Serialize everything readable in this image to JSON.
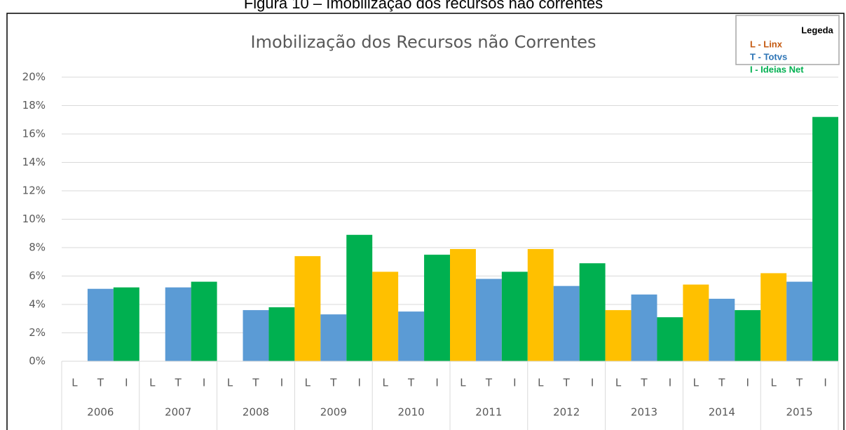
{
  "chart_data": {
    "type": "bar",
    "caption": "Figura 10 – Imobilização dos recursos não correntes",
    "title": "Imobilização dos Recursos não Correntes",
    "categories": [
      "2006",
      "2007",
      "2008",
      "2009",
      "2010",
      "2011",
      "2012",
      "2013",
      "2014",
      "2015"
    ],
    "sub_labels": [
      "L",
      "T",
      "I"
    ],
    "legend_title": "Legeda",
    "legend_position": "top-right",
    "grid": true,
    "series": [
      {
        "name": "L - Linx",
        "color": "#ffc000",
        "legend_color": "#c55a11",
        "values": [
          null,
          null,
          null,
          7.4,
          6.3,
          7.9,
          7.9,
          3.6,
          5.4,
          6.2
        ]
      },
      {
        "name": "T - Totvs",
        "color": "#5b9bd5",
        "legend_color": "#2e75b6",
        "values": [
          5.1,
          5.2,
          3.6,
          3.3,
          3.5,
          5.8,
          5.3,
          4.7,
          4.4,
          5.6
        ]
      },
      {
        "name": "I - Ideias Net",
        "color": "#00b050",
        "legend_color": "#00b050",
        "values": [
          5.2,
          5.6,
          3.8,
          8.9,
          7.5,
          6.3,
          6.9,
          3.1,
          3.6,
          17.2
        ]
      }
    ],
    "ylim": [
      0,
      20
    ],
    "yticks": [
      {
        "value": 0,
        "label": "0%"
      },
      {
        "value": 2,
        "label": "2%"
      },
      {
        "value": 4,
        "label": "4%"
      },
      {
        "value": 6,
        "label": "6%"
      },
      {
        "value": 8,
        "label": "8%"
      },
      {
        "value": 10,
        "label": "10%"
      },
      {
        "value": 12,
        "label": "12%"
      },
      {
        "value": 14,
        "label": "14%"
      },
      {
        "value": 16,
        "label": "16%"
      },
      {
        "value": 18,
        "label": "18%"
      },
      {
        "value": 20,
        "label": "20%"
      }
    ]
  }
}
